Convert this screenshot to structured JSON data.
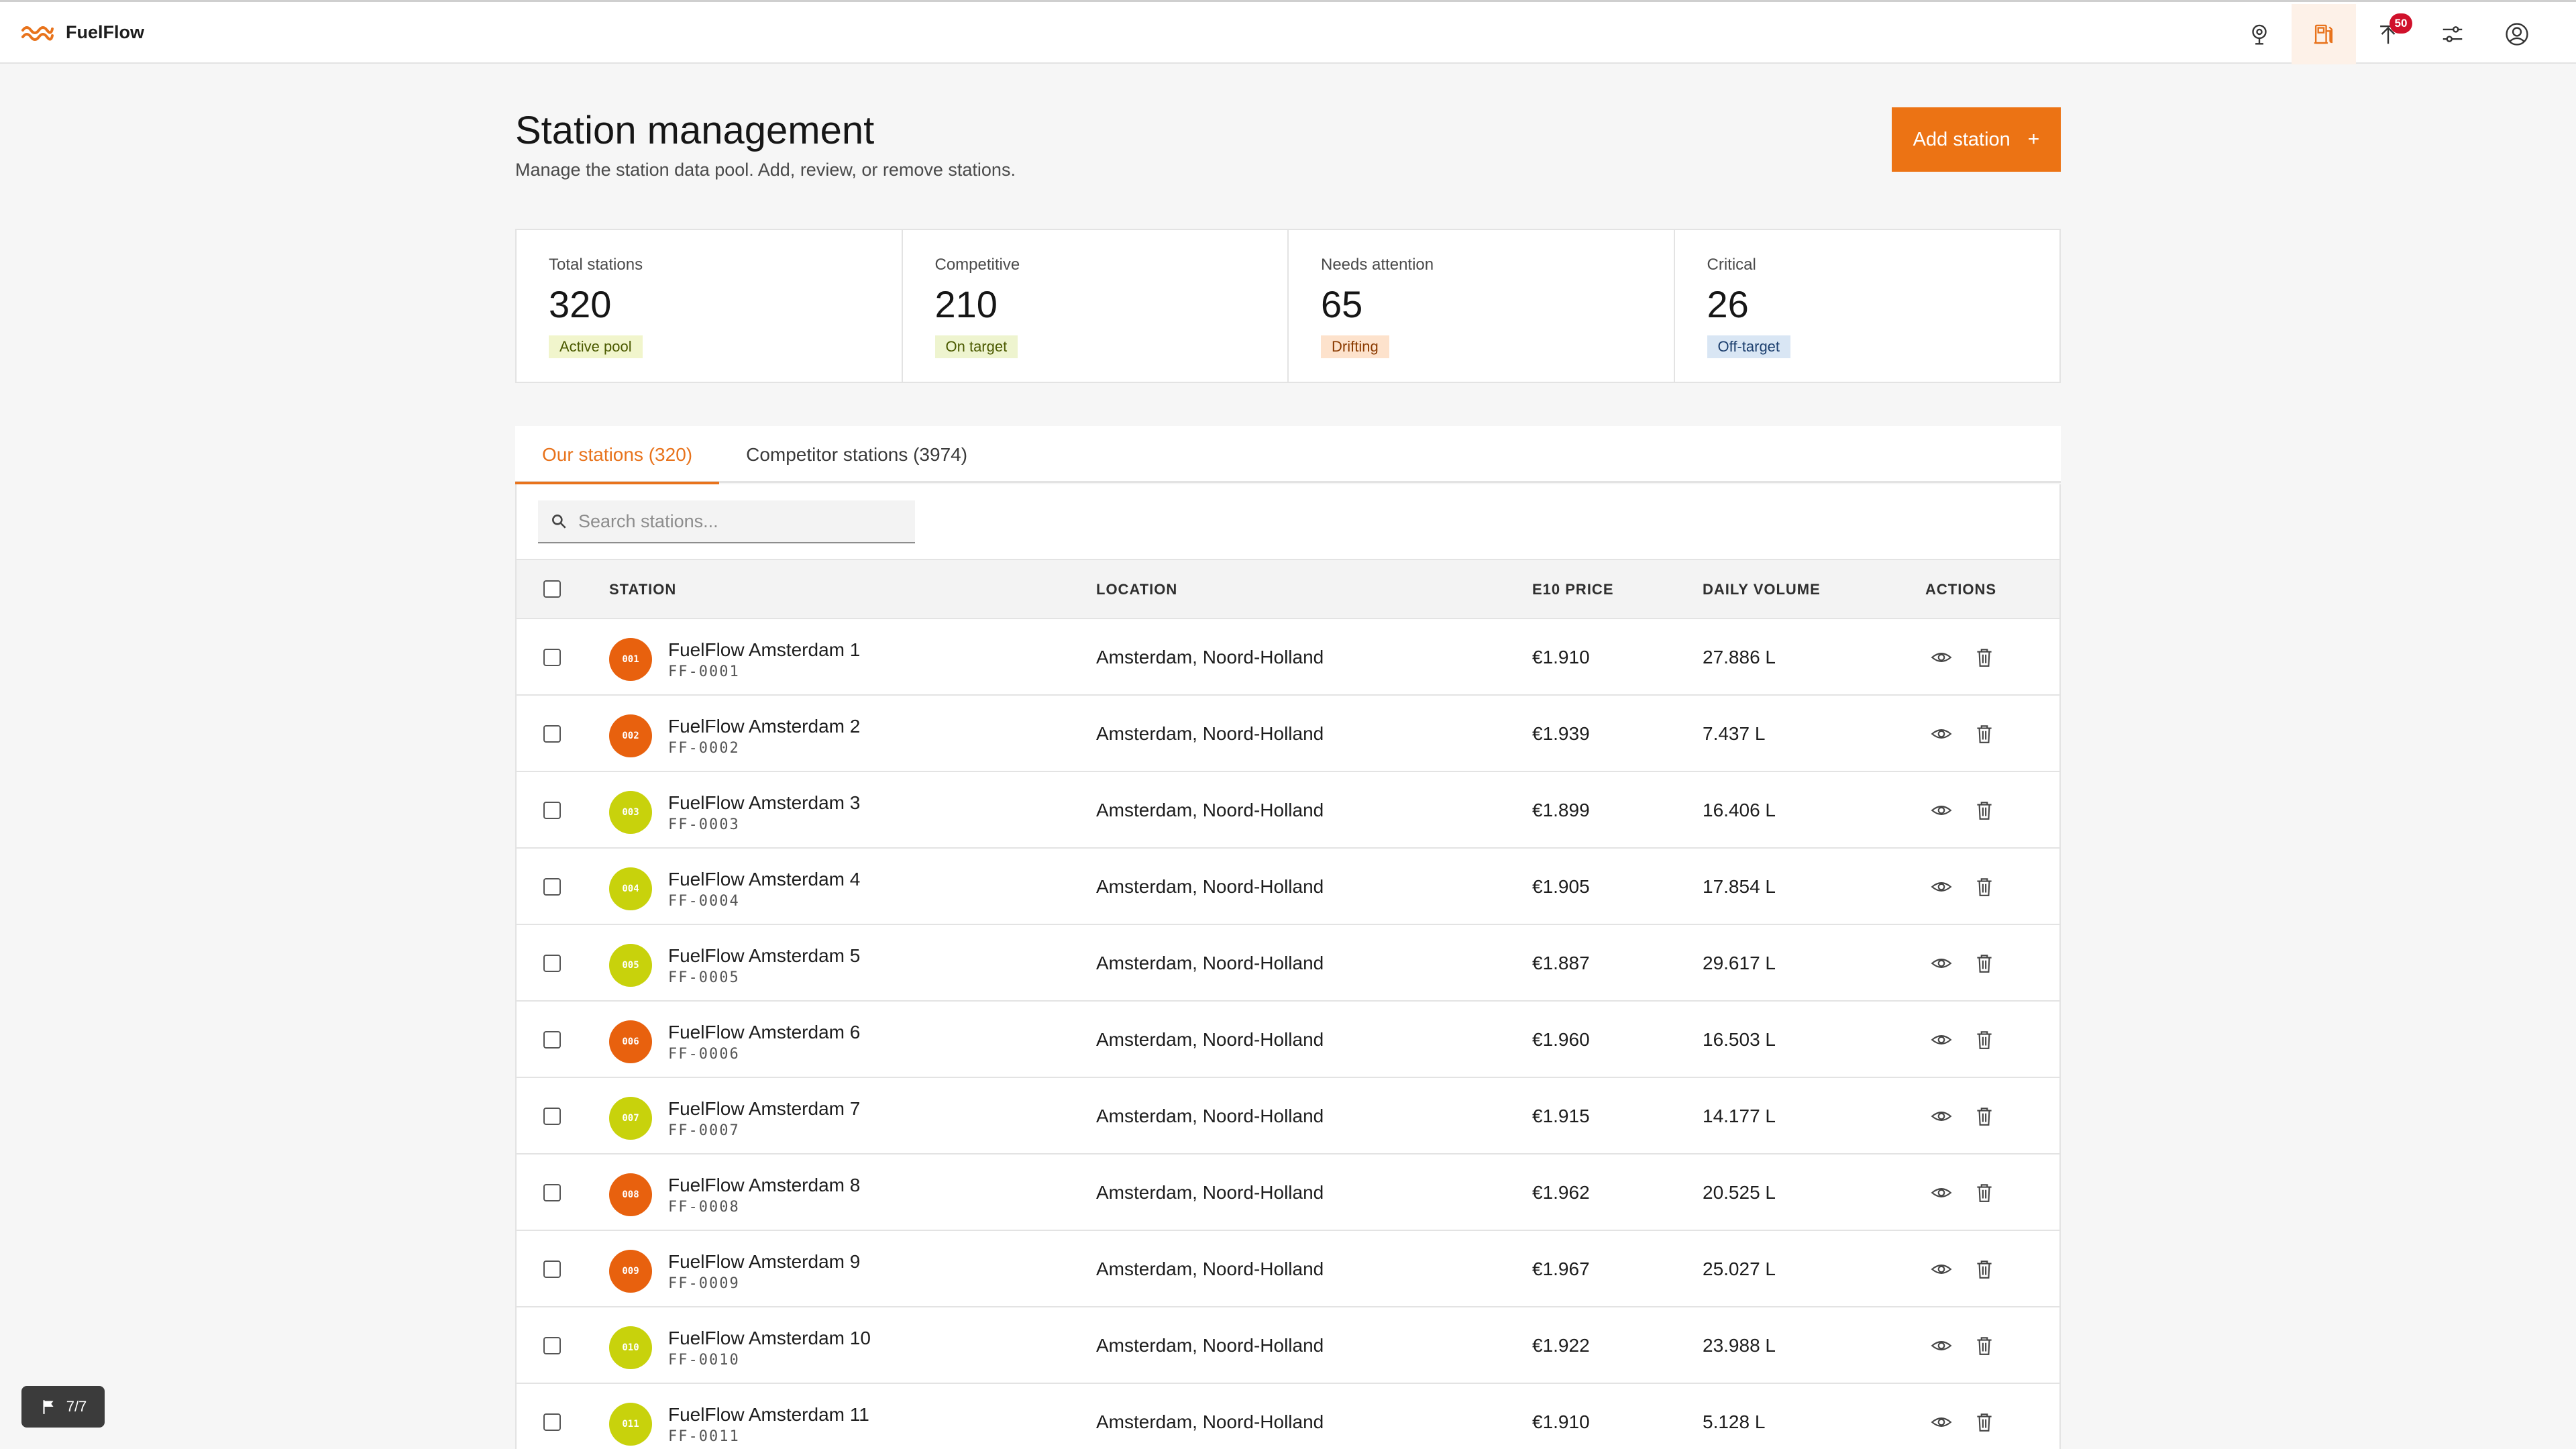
{
  "app": {
    "name": "FuelFlow"
  },
  "header": {
    "notifications_count": "50",
    "icons": [
      "map-pin-icon",
      "fuel-station-icon",
      "notification-icon",
      "sliders-icon",
      "user-icon"
    ]
  },
  "page": {
    "title": "Station management",
    "subtitle": "Manage the station data pool. Add, review, or remove stations.",
    "add_button_label": "Add station",
    "add_button_icon": "+"
  },
  "stats": [
    {
      "label": "Total stations",
      "value": "320",
      "tag": "Active pool"
    },
    {
      "label": "Competitive",
      "value": "210",
      "tag": "On target"
    },
    {
      "label": "Needs attention",
      "value": "65",
      "tag": "Drifting"
    },
    {
      "label": "Critical",
      "value": "26",
      "tag": "Off-target"
    }
  ],
  "tabs": [
    {
      "label": "Our stations (320)",
      "active": true
    },
    {
      "label": "Competitor stations (3974)",
      "active": false
    }
  ],
  "search": {
    "placeholder": "Search stations..."
  },
  "table": {
    "columns": [
      "STATION",
      "LOCATION",
      "E10 PRICE",
      "DAILY VOLUME",
      "ACTIONS"
    ],
    "rows": [
      {
        "code": "001",
        "name": "FuelFlow Amsterdam 1",
        "id": "FF-0001",
        "location": "Amsterdam, Noord-Holland",
        "price": "€1.910",
        "volume": "27.886 L",
        "status": "orange"
      },
      {
        "code": "002",
        "name": "FuelFlow Amsterdam 2",
        "id": "FF-0002",
        "location": "Amsterdam, Noord-Holland",
        "price": "€1.939",
        "volume": "7.437 L",
        "status": "orange"
      },
      {
        "code": "003",
        "name": "FuelFlow Amsterdam 3",
        "id": "FF-0003",
        "location": "Amsterdam, Noord-Holland",
        "price": "€1.899",
        "volume": "16.406 L",
        "status": "lime"
      },
      {
        "code": "004",
        "name": "FuelFlow Amsterdam 4",
        "id": "FF-0004",
        "location": "Amsterdam, Noord-Holland",
        "price": "€1.905",
        "volume": "17.854 L",
        "status": "lime"
      },
      {
        "code": "005",
        "name": "FuelFlow Amsterdam 5",
        "id": "FF-0005",
        "location": "Amsterdam, Noord-Holland",
        "price": "€1.887",
        "volume": "29.617 L",
        "status": "lime"
      },
      {
        "code": "006",
        "name": "FuelFlow Amsterdam 6",
        "id": "FF-0006",
        "location": "Amsterdam, Noord-Holland",
        "price": "€1.960",
        "volume": "16.503 L",
        "status": "orange"
      },
      {
        "code": "007",
        "name": "FuelFlow Amsterdam 7",
        "id": "FF-0007",
        "location": "Amsterdam, Noord-Holland",
        "price": "€1.915",
        "volume": "14.177 L",
        "status": "lime"
      },
      {
        "code": "008",
        "name": "FuelFlow Amsterdam 8",
        "id": "FF-0008",
        "location": "Amsterdam, Noord-Holland",
        "price": "€1.962",
        "volume": "20.525 L",
        "status": "orange"
      },
      {
        "code": "009",
        "name": "FuelFlow Amsterdam 9",
        "id": "FF-0009",
        "location": "Amsterdam, Noord-Holland",
        "price": "€1.967",
        "volume": "25.027 L",
        "status": "orange"
      },
      {
        "code": "010",
        "name": "FuelFlow Amsterdam 10",
        "id": "FF-0010",
        "location": "Amsterdam, Noord-Holland",
        "price": "€1.922",
        "volume": "23.988 L",
        "status": "lime"
      },
      {
        "code": "011",
        "name": "FuelFlow Amsterdam 11",
        "id": "FF-0011",
        "location": "Amsterdam, Noord-Holland",
        "price": "€1.910",
        "volume": "5.128 L",
        "status": "lime"
      }
    ],
    "row_actions": [
      "view-icon",
      "delete-icon"
    ]
  },
  "tour": {
    "label": "7/7",
    "icon": "flag-icon"
  },
  "colors": {
    "accent": "#ec7314",
    "status_orange": "#e8610e",
    "status_lime": "#c8d20c",
    "badge": "#d0112b"
  }
}
